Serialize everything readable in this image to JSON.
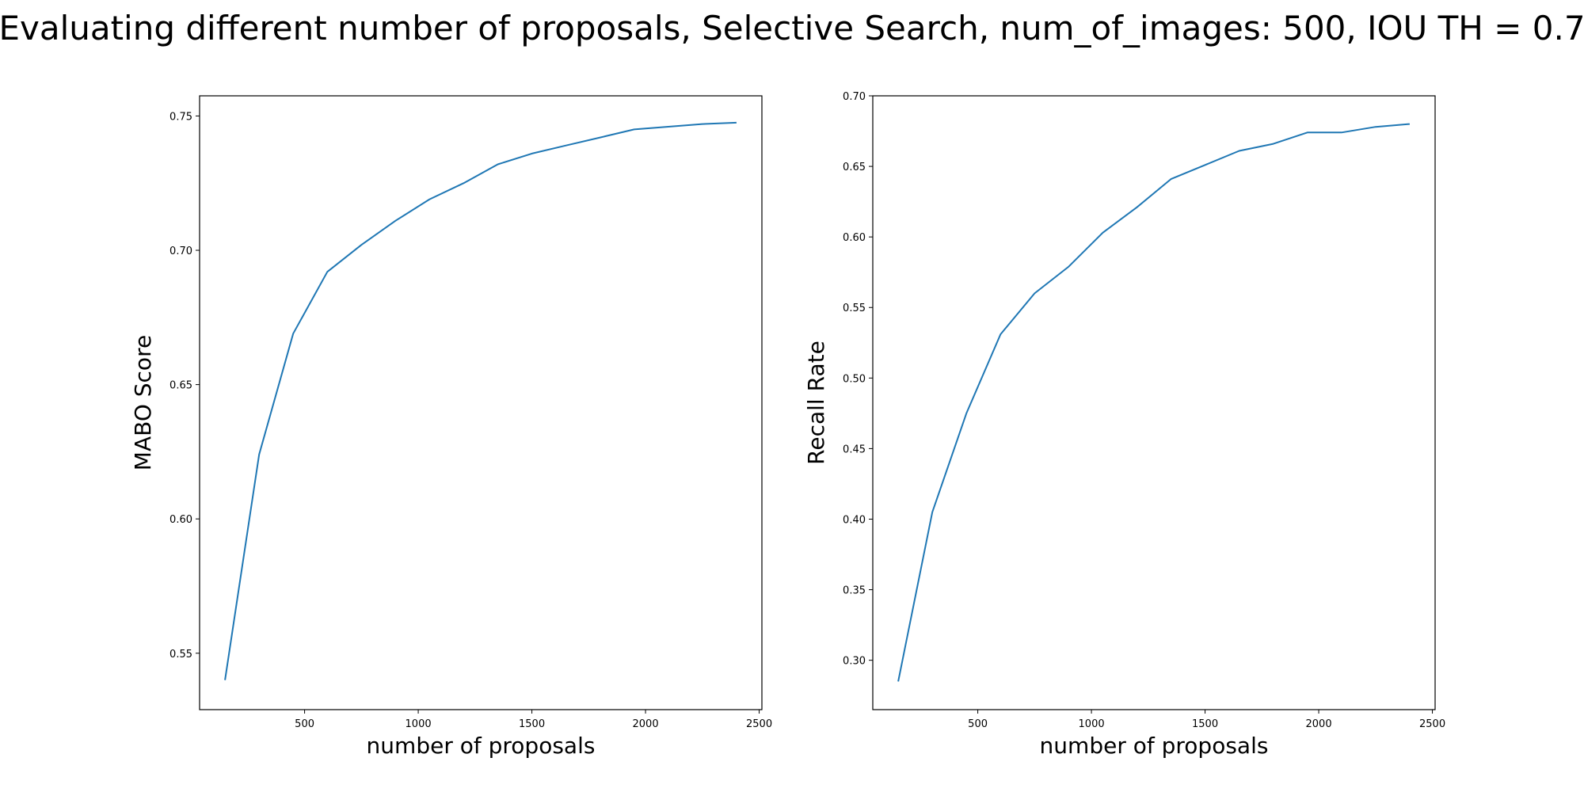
{
  "figure": {
    "title": "Evaluating different number of proposals, Selective Search, num_of_images: 500, IOU TH = 0.7"
  },
  "colors": {
    "series": "#1f77b4",
    "axes": "#000000",
    "background": "#ffffff"
  },
  "chart_data": [
    {
      "type": "line",
      "xlabel": "number of proposals",
      "ylabel": "MABO Score",
      "xlim": [
        38,
        2512
      ],
      "ylim": [
        0.529,
        0.7575
      ],
      "grid": false,
      "xticks": [
        "500",
        "1000",
        "1500",
        "2000",
        "2500"
      ],
      "yticks": [
        "0.55",
        "0.60",
        "0.65",
        "0.70",
        "0.75"
      ],
      "series": [
        {
          "x": [
            150,
            300,
            450,
            600,
            750,
            900,
            1050,
            1200,
            1350,
            1500,
            1650,
            1800,
            1950,
            2100,
            2250,
            2400
          ],
          "values": [
            0.54,
            0.624,
            0.669,
            0.692,
            0.702,
            0.711,
            0.719,
            0.725,
            0.732,
            0.736,
            0.739,
            0.742,
            0.745,
            0.746,
            0.747,
            0.7475
          ]
        }
      ]
    },
    {
      "type": "line",
      "xlabel": "number of proposals",
      "ylabel": "Recall Rate",
      "xlim": [
        38,
        2512
      ],
      "ylim": [
        0.265,
        0.7
      ],
      "grid": false,
      "xticks": [
        "500",
        "1000",
        "1500",
        "2000",
        "2500"
      ],
      "yticks": [
        "0.30",
        "0.35",
        "0.40",
        "0.45",
        "0.50",
        "0.55",
        "0.60",
        "0.65",
        "0.70"
      ],
      "series": [
        {
          "x": [
            150,
            300,
            450,
            600,
            750,
            900,
            1050,
            1200,
            1350,
            1500,
            1650,
            1800,
            1950,
            2100,
            2250,
            2400
          ],
          "values": [
            0.285,
            0.405,
            0.475,
            0.531,
            0.56,
            0.579,
            0.603,
            0.621,
            0.641,
            0.651,
            0.661,
            0.666,
            0.674,
            0.674,
            0.678,
            0.68
          ]
        }
      ]
    }
  ]
}
